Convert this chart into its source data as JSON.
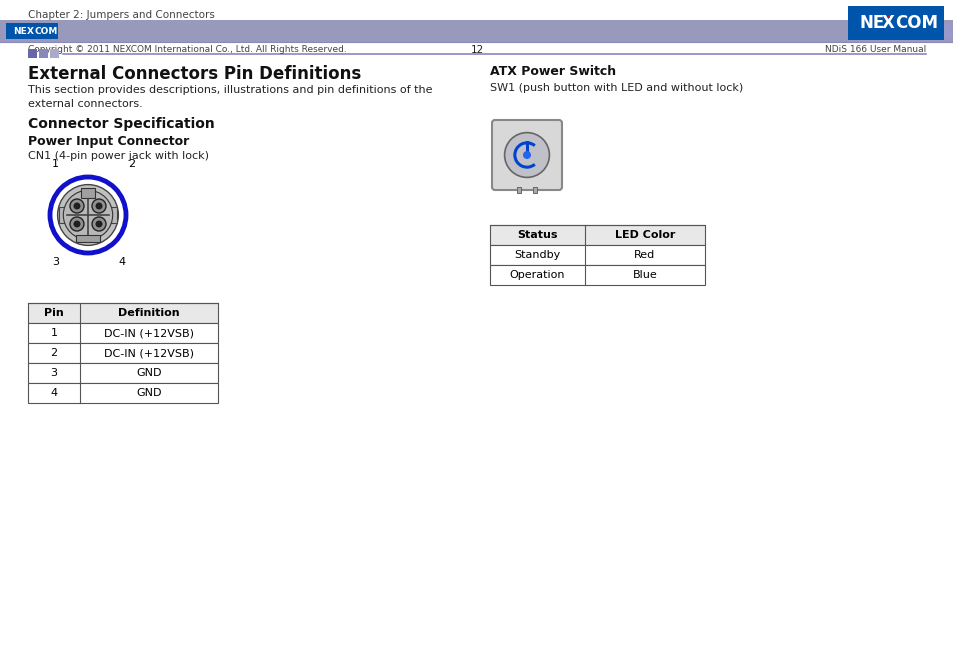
{
  "page_title": "Chapter 2: Jumpers and Connectors",
  "page_num": "12",
  "footer_left": "Copyright © 2011 NEXCOM International Co., Ltd. All Rights Reserved.",
  "footer_right": "NDiS 166 User Manual",
  "section_title": "External Connectors Pin Definitions",
  "section_desc_line1": "This section provides descriptions, illustrations and pin definitions of the",
  "section_desc_line2": "external connectors.",
  "subsection_title": "Connector Specification",
  "power_input_title": "Power Input Connector",
  "power_input_desc": "CN1 (4-pin power jack with lock)",
  "pin_table_headers": [
    "Pin",
    "Definition"
  ],
  "pin_table_data": [
    [
      "1",
      "DC-IN (+12VSB)"
    ],
    [
      "2",
      "DC-IN (+12VSB)"
    ],
    [
      "3",
      "GND"
    ],
    [
      "4",
      "GND"
    ]
  ],
  "atx_title": "ATX Power Switch",
  "atx_desc": "SW1 (push button with LED and without lock)",
  "led_table_headers": [
    "Status",
    "LED Color"
  ],
  "led_table_data": [
    [
      "Standby",
      "Red"
    ],
    [
      "Operation",
      "Blue"
    ]
  ],
  "header_bar_color": "#8888bb",
  "footer_bar_color": "#9999bb",
  "nexcom_logo_bg": "#0055aa",
  "nexcom_logo_bg_footer": "#0055aa",
  "nexcom_green": "#00aa44",
  "bg_color": "#ffffff",
  "text_color": "#000000",
  "table_header_bg": "#e8e8e8",
  "table_border_color": "#555555",
  "header_squares": [
    "#6666aa",
    "#8888bb",
    "#aaaacc"
  ],
  "footer_sq1": "#7777aa",
  "footer_sq2": "#9999cc"
}
